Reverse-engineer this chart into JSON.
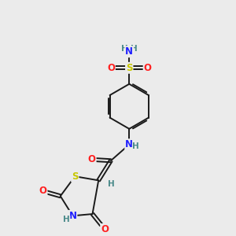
{
  "bg_color": "#ebebeb",
  "atom_colors": {
    "C": "#000000",
    "H": "#4a8a8a",
    "N": "#2020ff",
    "O": "#ff2020",
    "S": "#c8c800"
  },
  "bond_color": "#1a1a1a",
  "bond_width": 1.4,
  "font_size_atom": 8.5,
  "font_size_H": 7.5
}
